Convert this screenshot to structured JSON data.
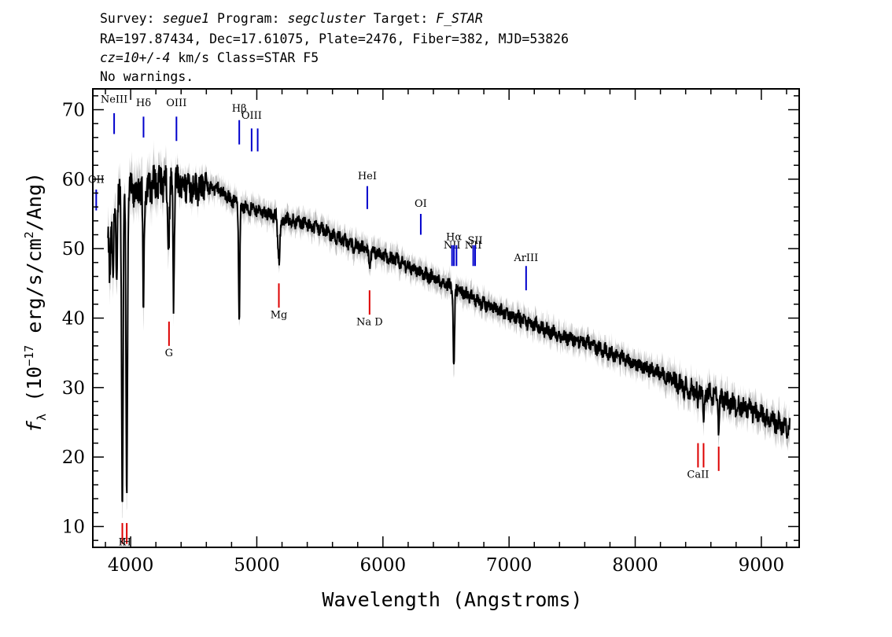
{
  "header": {
    "line1": [
      {
        "text": "Survey: ",
        "italic": false
      },
      {
        "text": "segue1",
        "italic": true
      },
      {
        "text": " Program: ",
        "italic": false
      },
      {
        "text": "segcluster",
        "italic": true
      },
      {
        "text": " Target: ",
        "italic": false
      },
      {
        "text": "F_STAR",
        "italic": true
      }
    ],
    "line2": "RA=197.87434, Dec=17.61075, Plate=2476, Fiber=382, MJD=53826",
    "line3": [
      {
        "text": "cz=10+/-4",
        "italic": true
      },
      {
        "text": " km/s Class=STAR F5",
        "italic": false
      }
    ],
    "line4": "No warnings."
  },
  "chart_data": {
    "type": "line",
    "xlabel": "Wavelength (Angstroms)",
    "ylabel_parts": [
      "f",
      "λ",
      " (10",
      "−17",
      " erg/s/cm",
      "2",
      "/Ang)"
    ],
    "xlim": [
      3700,
      9300
    ],
    "ylim": [
      7,
      73
    ],
    "xticks": [
      4000,
      5000,
      6000,
      7000,
      8000,
      9000
    ],
    "yticks": [
      10,
      20,
      30,
      40,
      50,
      60,
      70
    ],
    "series": [
      {
        "role": "flux",
        "color": "#000000",
        "continuum": [
          [
            3820,
            50
          ],
          [
            3880,
            57
          ],
          [
            3950,
            59
          ],
          [
            4000,
            58
          ],
          [
            4100,
            58.5
          ],
          [
            4200,
            59.5
          ],
          [
            4300,
            59.5
          ],
          [
            4400,
            59.5
          ],
          [
            4500,
            59
          ],
          [
            4600,
            59
          ],
          [
            4700,
            58.5
          ],
          [
            4800,
            57
          ],
          [
            4900,
            56
          ],
          [
            5000,
            55.5
          ],
          [
            5100,
            55
          ],
          [
            5200,
            54
          ],
          [
            5300,
            54
          ],
          [
            5400,
            53.5
          ],
          [
            5500,
            53
          ],
          [
            5600,
            52
          ],
          [
            5700,
            51
          ],
          [
            5800,
            50.3
          ],
          [
            5900,
            49.5
          ],
          [
            6000,
            49
          ],
          [
            6100,
            48.3
          ],
          [
            6200,
            47.5
          ],
          [
            6300,
            46.5
          ],
          [
            6400,
            45.8
          ],
          [
            6500,
            45
          ],
          [
            6600,
            44
          ],
          [
            6700,
            43
          ],
          [
            6800,
            42
          ],
          [
            6900,
            41.3
          ],
          [
            7000,
            40.5
          ],
          [
            7100,
            39.8
          ],
          [
            7200,
            39
          ],
          [
            7400,
            37.5
          ],
          [
            7600,
            36.5
          ],
          [
            7800,
            35
          ],
          [
            8000,
            33.5
          ],
          [
            8200,
            32
          ],
          [
            8400,
            30
          ],
          [
            8600,
            29
          ],
          [
            8800,
            27.5
          ],
          [
            9000,
            26
          ],
          [
            9220,
            24
          ]
        ],
        "absorption": [
          {
            "wavelength": 3835,
            "depth": 6,
            "width": 4
          },
          {
            "wavelength": 3860,
            "depth": 10,
            "width": 5
          },
          {
            "wavelength": 3889,
            "depth": 13,
            "width": 5
          },
          {
            "wavelength": 3934,
            "depth": 44,
            "width": 6
          },
          {
            "wavelength": 3969,
            "depth": 43,
            "width": 6
          },
          {
            "wavelength": 4102,
            "depth": 17,
            "width": 5
          },
          {
            "wavelength": 4300,
            "depth": 8,
            "width": 8
          },
          {
            "wavelength": 4341,
            "depth": 17,
            "width": 5
          },
          {
            "wavelength": 4861,
            "depth": 16,
            "width": 5
          },
          {
            "wavelength": 5175,
            "depth": 6,
            "width": 8
          },
          {
            "wavelength": 5893,
            "depth": 2,
            "width": 6
          },
          {
            "wavelength": 6563,
            "depth": 12,
            "width": 5
          },
          {
            "wavelength": 8498,
            "depth": 3,
            "width": 4
          },
          {
            "wavelength": 8542,
            "depth": 5,
            "width": 4
          },
          {
            "wavelength": 8662,
            "depth": 5,
            "width": 4
          }
        ]
      },
      {
        "role": "error-band",
        "color": "#c0c0c0"
      }
    ],
    "emission_lines": [
      {
        "label": "OII",
        "x": 3727,
        "y0": 55.5,
        "y1": 58.5,
        "label_y": 59.5
      },
      {
        "label": "NeIII",
        "x": 3869,
        "y0": 66.5,
        "y1": 69.5,
        "label_y": 71
      },
      {
        "label": "Hδ",
        "x": 4102,
        "y0": 66,
        "y1": 69,
        "label_y": 70.5
      },
      {
        "label": "OIII",
        "x": 4363,
        "y0": 65.5,
        "y1": 69,
        "label_y": 70.5
      },
      {
        "label": "Hβ",
        "x": 4861,
        "y0": 65,
        "y1": 68.5,
        "label_y": 69.7
      },
      {
        "label": "OIII",
        "x": 4959,
        "y0": 64,
        "y1": 67.3,
        "label_y": 68.7
      },
      {
        "label": "OIII",
        "x": 5007,
        "y0": 64,
        "y1": 67.3,
        "label_y": null
      },
      {
        "label": "HeI",
        "x": 5876,
        "y0": 55.7,
        "y1": 59,
        "label_y": 60
      },
      {
        "label": "OI",
        "x": 6300,
        "y0": 52,
        "y1": 55,
        "label_y": 56
      },
      {
        "label": "NII",
        "x": 6548,
        "y0": 47.5,
        "y1": 50.5,
        "label_y": 50
      },
      {
        "label": "Hα",
        "x": 6563,
        "y0": 47.5,
        "y1": 50.5,
        "label_y": 51.2
      },
      {
        "label": "NII",
        "x": 6583,
        "y0": 47.5,
        "y1": 50.5,
        "label_y": null
      },
      {
        "label": "NII",
        "x": 6716,
        "y0": 47.5,
        "y1": 50.5,
        "label_y": 50
      },
      {
        "label": "SII",
        "x": 6731,
        "y0": 47.5,
        "y1": 50.5,
        "label_y": 50.7
      },
      {
        "label": "ArIII",
        "x": 7135,
        "y0": 44,
        "y1": 47.5,
        "label_y": 48.2
      }
    ],
    "absorption_lines": [
      {
        "label": "K",
        "x": 3934,
        "y0": 7.5,
        "y1": 10.5,
        "label_y": 7.3
      },
      {
        "label": "H",
        "x": 3969,
        "y0": 7.5,
        "y1": 10.5,
        "label_y": 7.3
      },
      {
        "label": "G",
        "x": 4304,
        "y0": 36,
        "y1": 39.5,
        "label_y": 34.5
      },
      {
        "label": "Mg",
        "x": 5175,
        "y0": 41.5,
        "y1": 45,
        "label_y": 40
      },
      {
        "label": "Na D",
        "x": 5894,
        "y0": 40.5,
        "y1": 44,
        "label_y": 39
      },
      {
        "label": "CaII",
        "x": 8498,
        "y0": 18.5,
        "y1": 22,
        "label_y": 17
      },
      {
        "label": "CaII",
        "x": 8542,
        "y0": 18.5,
        "y1": 22,
        "label_y": null
      },
      {
        "label": "CaII",
        "x": 8662,
        "y0": 18,
        "y1": 21.5,
        "label_y": null
      }
    ],
    "colors": {
      "emission": "#0000cc",
      "absorption": "#dd0000",
      "flux": "#000000",
      "error": "#c0c0c0"
    }
  }
}
